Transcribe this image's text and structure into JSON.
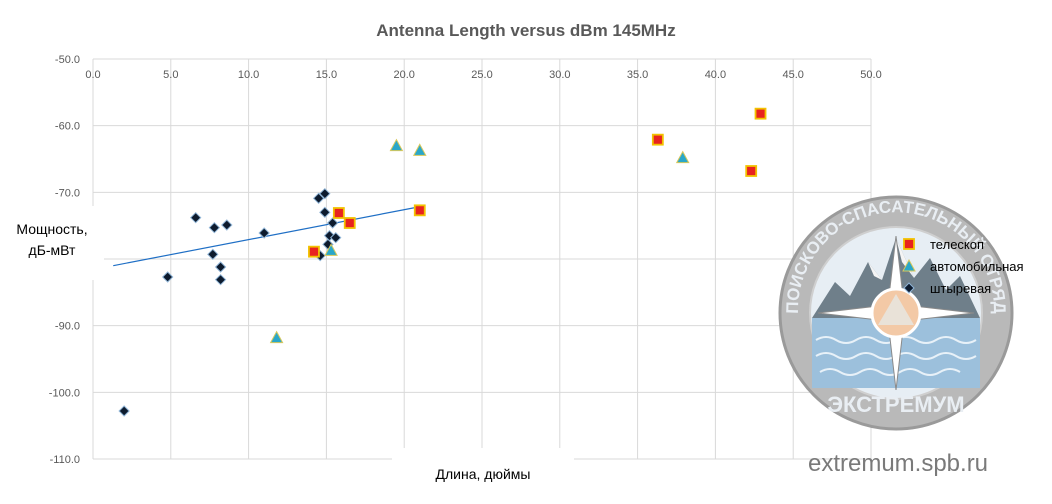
{
  "chart_data": {
    "type": "scatter",
    "title": "Antenna Length versus dBm 145MHz",
    "xlabel": "Длина, дюймы",
    "ylabel_lines": [
      "Мощность,",
      "дБ-мВт"
    ],
    "xlim": [
      0,
      50
    ],
    "ylim": [
      -110,
      -50
    ],
    "x_ticks": [
      "0.0",
      "5.0",
      "10.0",
      "15.0",
      "20.0",
      "25.0",
      "30.0",
      "35.0",
      "40.0",
      "45.0",
      "50.0"
    ],
    "y_ticks": [
      "-50.0",
      "-60.0",
      "-70.0",
      "-80.0",
      "-90.0",
      "-100.0",
      "-110.0"
    ],
    "x_axis_position": "top",
    "grid": true,
    "legend_position": "right",
    "series": [
      {
        "name": "телескоп",
        "marker": "square",
        "color": "#e8231f",
        "edge": "#f2c200",
        "points": [
          [
            14.2,
            -78.9
          ],
          [
            15.8,
            -73.1
          ],
          [
            16.5,
            -74.6
          ],
          [
            21.0,
            -72.7
          ],
          [
            36.3,
            -62.1
          ],
          [
            42.3,
            -66.8
          ],
          [
            42.9,
            -58.2
          ]
        ]
      },
      {
        "name": "автомобильная",
        "marker": "triangle",
        "color": "#2aa7c9",
        "edge": "#d8c85a",
        "points": [
          [
            11.8,
            -91.8
          ],
          [
            15.3,
            -78.7
          ],
          [
            19.5,
            -63.0
          ],
          [
            21.0,
            -63.7
          ],
          [
            37.9,
            -64.8
          ]
        ]
      },
      {
        "name": "штыревая",
        "marker": "diamond",
        "color": "#0d1b2e",
        "edge": "#8fb4d6",
        "points": [
          [
            2.0,
            -102.8
          ],
          [
            4.8,
            -82.7
          ],
          [
            6.6,
            -73.8
          ],
          [
            7.7,
            -79.3
          ],
          [
            7.8,
            -75.3
          ],
          [
            8.2,
            -81.2
          ],
          [
            8.2,
            -83.1
          ],
          [
            8.6,
            -74.9
          ],
          [
            11.0,
            -76.1
          ],
          [
            14.5,
            -70.9
          ],
          [
            14.6,
            -79.5
          ],
          [
            14.9,
            -70.2
          ],
          [
            14.9,
            -73.0
          ],
          [
            15.1,
            -77.8
          ],
          [
            15.2,
            -76.5
          ],
          [
            15.4,
            -74.6
          ],
          [
            15.6,
            -76.8
          ]
        ]
      }
    ],
    "trendline": {
      "color": "#1f6fc5",
      "x": [
        1.3,
        20.9
      ],
      "y": [
        -81.0,
        -72.2
      ]
    }
  },
  "watermark": {
    "ring_text": "ПОИСКОВО-СПАСАТЕЛЬНЫЙ ОТРЯД",
    "bottom_text": "ЭКСТРЕМУМ",
    "url": "extremum.spb.ru"
  }
}
